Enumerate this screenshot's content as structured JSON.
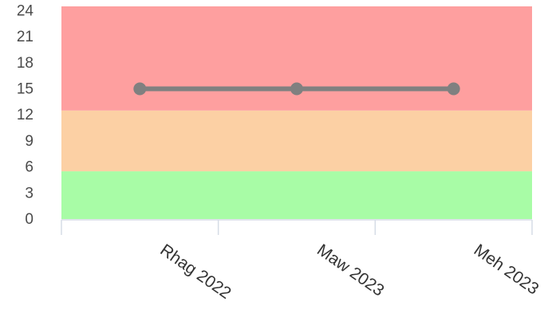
{
  "chart_data": {
    "type": "line",
    "categories": [
      "Rhag 2022",
      "Maw 2023",
      "Meh 2023"
    ],
    "series": [
      {
        "values": [
          15,
          15,
          15
        ],
        "color": "#808080"
      }
    ],
    "bands": [
      {
        "from": 0,
        "to": 5.5,
        "color": "#a8fca6"
      },
      {
        "from": 5.5,
        "to": 12.5,
        "color": "#fcd0a4"
      },
      {
        "from": 12.5,
        "to": 24.5,
        "color": "#fe9f9f"
      }
    ],
    "yticks": [
      0,
      3,
      6,
      9,
      12,
      15,
      18,
      21,
      24
    ],
    "ylim": [
      0,
      24.5
    ],
    "grid": false,
    "legend": "none"
  }
}
